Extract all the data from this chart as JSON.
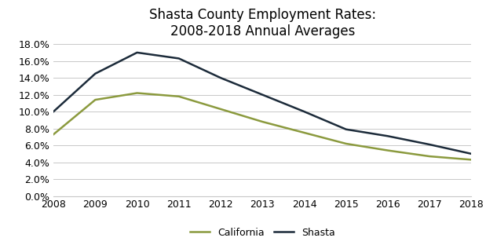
{
  "title": "Shasta County Employment Rates:\n2008-2018 Annual Averages",
  "years": [
    2008,
    2009,
    2010,
    2011,
    2012,
    2013,
    2014,
    2015,
    2016,
    2017,
    2018
  ],
  "california": [
    0.073,
    0.114,
    0.122,
    0.118,
    0.103,
    0.088,
    0.075,
    0.062,
    0.054,
    0.047,
    0.043
  ],
  "shasta": [
    0.1,
    0.145,
    0.17,
    0.163,
    0.14,
    0.12,
    0.1,
    0.079,
    0.071,
    0.061,
    0.05
  ],
  "california_color": "#8b9a3e",
  "shasta_color": "#1c2b3a",
  "line_width": 1.8,
  "ylim": [
    0.0,
    0.18
  ],
  "ytick_step": 0.02,
  "background_color": "#ffffff",
  "grid_color": "#c8c8c8",
  "legend_labels": [
    "California",
    "Shasta"
  ],
  "title_fontsize": 12,
  "tick_fontsize": 9,
  "legend_fontsize": 9
}
